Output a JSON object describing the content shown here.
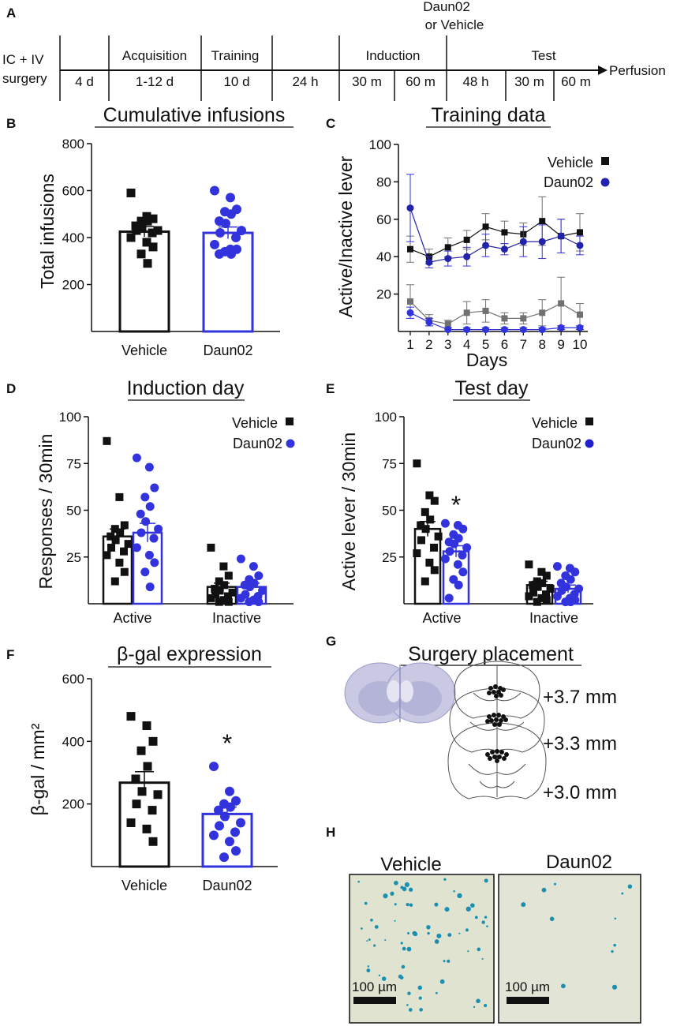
{
  "colors": {
    "vehicle": "#111111",
    "daun02": "#3333dd",
    "daun02_line": "#2222aa",
    "vehicle_inactive": "#707070",
    "stain_bg": "#dfe3cf",
    "stain_dot": "#1b8fb0",
    "vehicle_err": "#707070"
  },
  "panel_labels": {
    "A": "A",
    "B": "B",
    "C": "C",
    "D": "D",
    "E": "E",
    "F": "F",
    "G": "G",
    "H": "H"
  },
  "timeline": {
    "start_label_1": "IC + IV",
    "start_label_2": "surgery",
    "top_labels": [
      "Acquisition",
      "Training",
      "Induction",
      "Test"
    ],
    "above_label_1": "Daun02",
    "above_label_2": "or Vehicle",
    "durations": [
      "4 d",
      "1-12 d",
      "10 d",
      "24 h",
      "30 m",
      "60 m",
      "48 h",
      "30 m",
      "60 m"
    ],
    "end_label": "Perfusion"
  },
  "chart_data": [
    {
      "id": "B",
      "type": "bar",
      "title": "Cumulative infusions",
      "ylabel": "Total infusions",
      "ylim": [
        0,
        800
      ],
      "yticks": [
        200,
        400,
        600,
        800
      ],
      "categories": [
        "Vehicle",
        "Daun02"
      ],
      "series": [
        {
          "name": "Vehicle",
          "mean": 425,
          "sem": 22,
          "points": [
            590,
            490,
            480,
            470,
            470,
            450,
            440,
            430,
            430,
            420,
            400,
            380,
            360,
            330,
            290
          ]
        },
        {
          "name": "Daun02",
          "mean": 420,
          "sem": 25,
          "points": [
            600,
            570,
            520,
            510,
            500,
            470,
            460,
            430,
            420,
            400,
            370,
            350,
            350,
            340,
            330,
            330
          ]
        }
      ]
    },
    {
      "id": "C",
      "type": "line",
      "title": "Training data",
      "xlabel": "Days",
      "ylabel": "Active/Inactive lever",
      "x": [
        1,
        2,
        3,
        4,
        5,
        6,
        7,
        8,
        9,
        10
      ],
      "ylim": [
        0,
        100
      ],
      "yticks": [
        20,
        40,
        60,
        80,
        100
      ],
      "legend": [
        "Vehicle",
        "Daun02"
      ],
      "series": [
        {
          "name": "Vehicle active",
          "values": [
            44,
            40,
            45,
            49,
            56,
            53,
            52,
            59,
            51,
            53
          ],
          "err": [
            7,
            4,
            5,
            5,
            7,
            6,
            6,
            13,
            9,
            10
          ]
        },
        {
          "name": "Daun02 active",
          "values": [
            66,
            37,
            39,
            40,
            46,
            44,
            48,
            48,
            51,
            46
          ],
          "err": [
            18,
            3,
            4,
            5,
            6,
            3,
            8,
            9,
            9,
            5
          ]
        },
        {
          "name": "Vehicle inactive",
          "values": [
            16,
            6,
            4,
            10,
            11,
            7,
            7,
            10,
            15,
            9
          ],
          "err": [
            9,
            3,
            2,
            6,
            6,
            3,
            3,
            7,
            14,
            6
          ]
        },
        {
          "name": "Daun02 inactive",
          "values": [
            10,
            5,
            1,
            1,
            1,
            1,
            1,
            1,
            2,
            2
          ],
          "err": [
            3,
            2,
            1,
            1,
            1,
            1,
            1,
            1,
            1,
            1
          ]
        }
      ]
    },
    {
      "id": "D",
      "type": "bar",
      "title": "Induction day",
      "ylabel": "Responses / 30min",
      "ylim": [
        0,
        100
      ],
      "yticks": [
        25,
        50,
        75,
        100
      ],
      "categories": [
        "Active",
        "Inactive"
      ],
      "legend": [
        "Vehicle",
        "Daun02"
      ],
      "series": [
        {
          "name": "Vehicle",
          "means": [
            36,
            9
          ],
          "sem": [
            4,
            2
          ],
          "points": [
            [
              87,
              57,
              42,
              40,
              38,
              36,
              34,
              32,
              30,
              28,
              26,
              22,
              17,
              12
            ],
            [
              30,
              20,
              15,
              12,
              10,
              8,
              7,
              6,
              5,
              4,
              3,
              2,
              1,
              1
            ]
          ]
        },
        {
          "name": "Daun02",
          "means": [
            38,
            9
          ],
          "sem": [
            5,
            2
          ],
          "points": [
            [
              78,
              73,
              62,
              57,
              52,
              48,
              44,
              40,
              38,
              35,
              30,
              26,
              22,
              17,
              9
            ],
            [
              24,
              20,
              15,
              13,
              11,
              10,
              9,
              7,
              5,
              4,
              3,
              2,
              1,
              1
            ]
          ]
        }
      ]
    },
    {
      "id": "E",
      "type": "bar",
      "title": "Test day",
      "ylabel": "Active lever / 30min",
      "ylim": [
        0,
        100
      ],
      "yticks": [
        25,
        50,
        75,
        100
      ],
      "categories": [
        "Active",
        "Inactive"
      ],
      "legend": [
        "Vehicle",
        "Daun02"
      ],
      "annotation": "*",
      "series": [
        {
          "name": "Vehicle",
          "means": [
            40,
            10
          ],
          "sem": [
            4,
            2
          ],
          "points": [
            [
              75,
              58,
              55,
              49,
              45,
              42,
              40,
              36,
              34,
              30,
              27,
              22,
              18,
              12
            ],
            [
              21,
              17,
              15,
              12,
              11,
              10,
              9,
              8,
              6,
              5,
              4,
              3,
              2,
              1
            ]
          ]
        },
        {
          "name": "Daun02",
          "means": [
            28,
            8
          ],
          "sem": [
            3,
            2
          ],
          "points": [
            [
              43,
              42,
              40,
              37,
              35,
              33,
              32,
              30,
              28,
              26,
              24,
              21,
              17,
              13,
              10,
              3
            ],
            [
              20,
              19,
              17,
              15,
              13,
              11,
              9,
              8,
              7,
              5,
              4,
              3,
              2,
              1,
              1
            ]
          ]
        }
      ]
    },
    {
      "id": "F",
      "type": "bar",
      "title": "β-gal expression",
      "ylabel": "β-gal / mm²",
      "ylim": [
        0,
        600
      ],
      "yticks": [
        200,
        400,
        600
      ],
      "categories": [
        "Vehicle",
        "Daun02"
      ],
      "annotation": "*",
      "series": [
        {
          "name": "Vehicle",
          "mean": 268,
          "sem": 35,
          "points": [
            480,
            450,
            400,
            370,
            320,
            280,
            240,
            230,
            200,
            180,
            140,
            120,
            80
          ]
        },
        {
          "name": "Daun02",
          "mean": 168,
          "sem": 22,
          "points": [
            320,
            240,
            210,
            200,
            190,
            180,
            160,
            140,
            130,
            110,
            100,
            80,
            50,
            30
          ]
        }
      ]
    }
  ],
  "surgery": {
    "title": "Surgery placement",
    "levels": [
      "+3.7 mm",
      "+3.3 mm",
      "+3.0 mm"
    ]
  },
  "images": {
    "vehicle_title": "Vehicle",
    "daun02_title": "Daun02",
    "scale_label": "100 µm"
  }
}
